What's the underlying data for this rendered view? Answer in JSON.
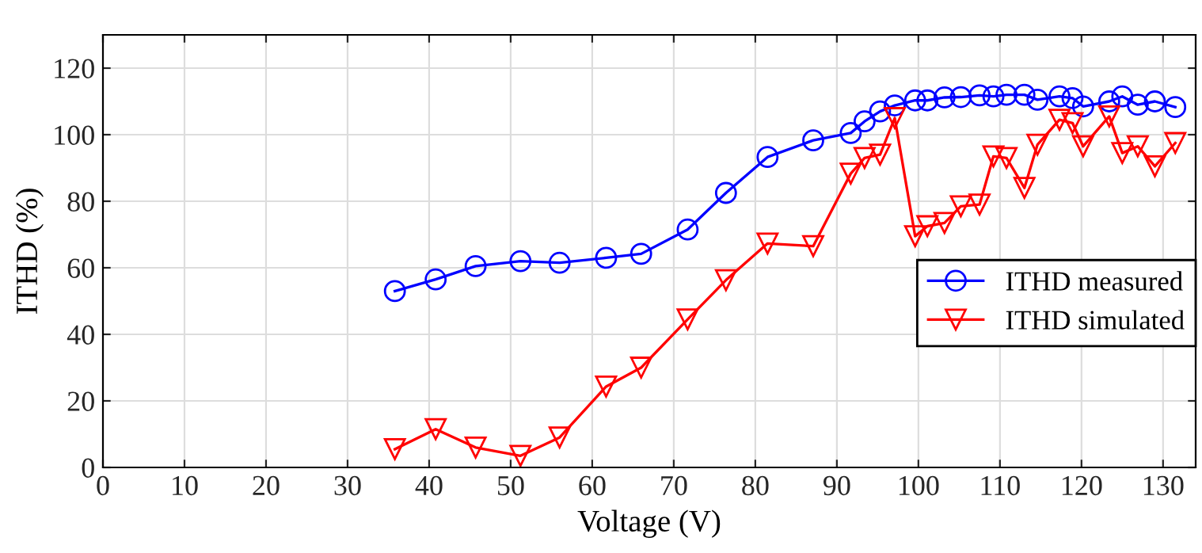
{
  "chart_data": {
    "type": "line",
    "xlabel": "Voltage (V)",
    "ylabel": "ITHD (%)",
    "x": [
      35.8,
      40.8,
      45.7,
      51.2,
      56.0,
      61.7,
      66.0,
      71.7,
      76.4,
      81.5,
      87.1,
      91.7,
      93.4,
      95.3,
      97.1,
      99.6,
      101.1,
      103.2,
      105.2,
      107.5,
      109.2,
      110.8,
      113.0,
      114.6,
      117.3,
      118.9,
      120.2,
      123.4,
      125.0,
      126.9,
      129.0,
      131.5
    ],
    "series": [
      {
        "name": "ITHD measured",
        "color": "#0000ff",
        "marker": "circle",
        "values": [
          53,
          56.5,
          60.5,
          62,
          61.5,
          63,
          64.2,
          71.5,
          82.5,
          93.3,
          98.3,
          100.5,
          104,
          107,
          108.8,
          110.3,
          110.3,
          111.2,
          111.3,
          111.8,
          111.5,
          112,
          112,
          110.5,
          111.5,
          111,
          108.5,
          110,
          111.5,
          109,
          110,
          108.3
        ]
      },
      {
        "name": "ITHD simulated",
        "color": "#ff0000",
        "marker": "triangle",
        "values": [
          5.5,
          11.5,
          6,
          3.5,
          9,
          24.3,
          30,
          44.5,
          56.3,
          67.3,
          66.5,
          88.3,
          93,
          94,
          105,
          69.5,
          72.5,
          73.5,
          78.5,
          79,
          93.5,
          93,
          84,
          97,
          104.5,
          103.5,
          96.5,
          105.5,
          94.5,
          96.5,
          90.5,
          97.5
        ]
      }
    ],
    "xlim": [
      0,
      134
    ],
    "ylim": [
      0,
      130
    ],
    "xticks": [
      0,
      10,
      20,
      30,
      40,
      50,
      60,
      70,
      80,
      90,
      100,
      110,
      120,
      130
    ],
    "yticks": [
      0,
      20,
      40,
      60,
      80,
      100,
      120
    ],
    "grid": true,
    "legend": "right",
    "line_style": "solid"
  }
}
